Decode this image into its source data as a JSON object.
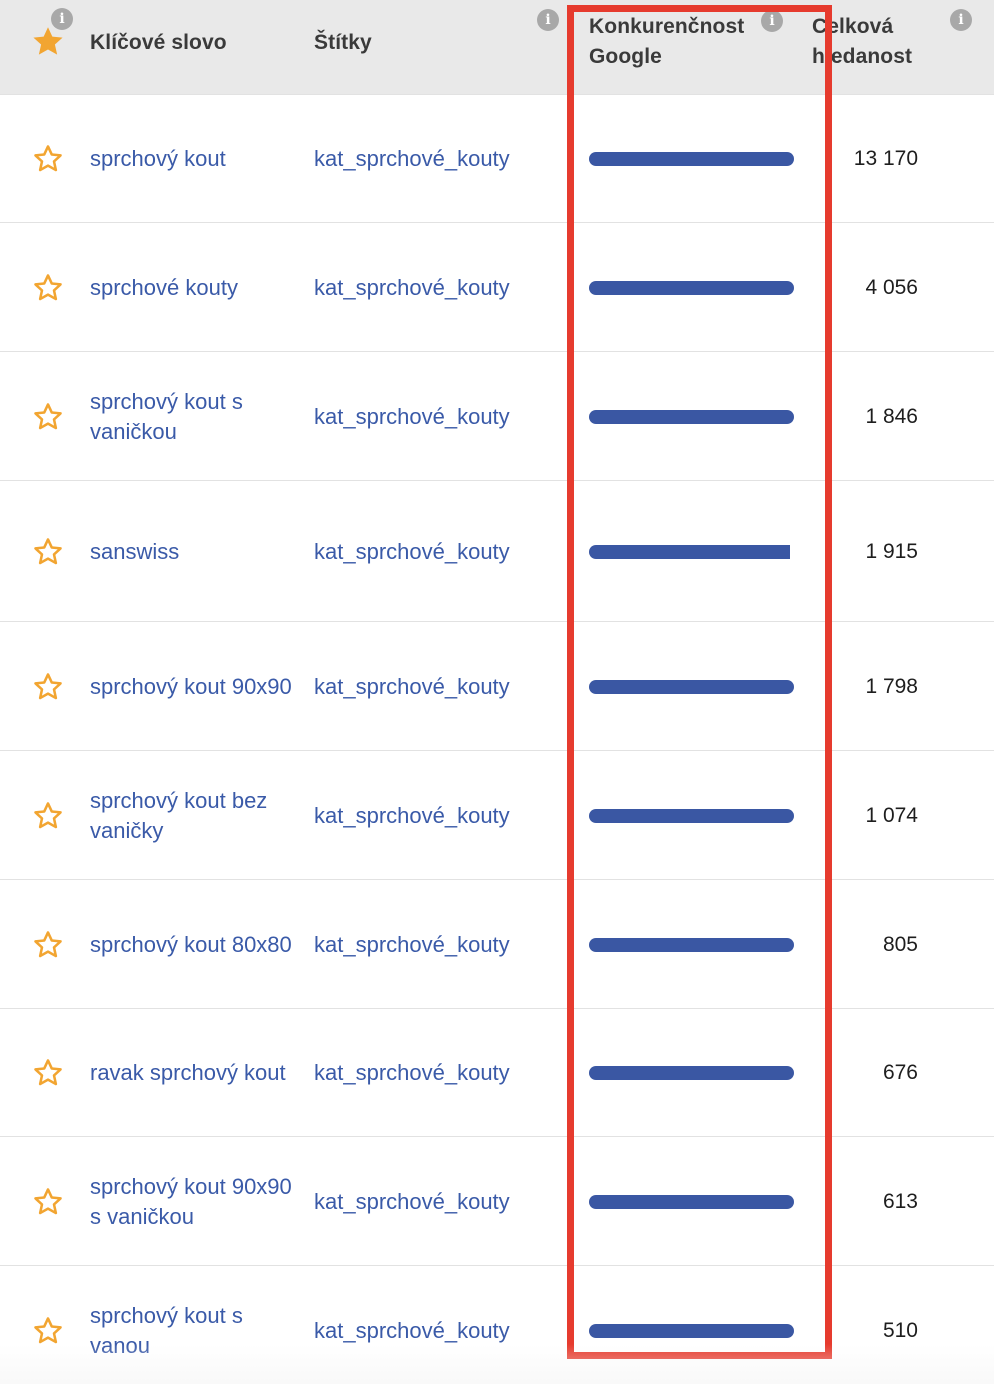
{
  "header": {
    "keyword": "Klíčové slovo",
    "tags": "Štítky",
    "competition_line1": "Konkurenčnost",
    "competition_line2": "Google",
    "volume_line1": "Celková",
    "volume_line2": "hledanost",
    "info_glyph": "i",
    "favorite_icon": "star-filled-icon"
  },
  "colors": {
    "star": "#f2a531",
    "link": "#3a5aa8",
    "bar": "#3a57a3",
    "highlight": "#e63b2e",
    "header_bg": "#e9e9e9"
  },
  "rows": [
    {
      "keyword": "sprchový kout",
      "tag": "kat_sprchové_kouty",
      "competition": 1.0,
      "volume": "13 170"
    },
    {
      "keyword": "sprchové kouty",
      "tag": "kat_sprchové_kouty",
      "competition": 1.0,
      "volume": "4 056"
    },
    {
      "keyword": "sprchový kout s vaničkou",
      "tag": "kat_sprchové_kouty",
      "competition": 1.0,
      "volume": "1 846"
    },
    {
      "keyword": "sanswiss",
      "tag": "kat_sprchové_kouty",
      "competition": 0.98,
      "volume": "1 915"
    },
    {
      "keyword": "sprchový kout 90x90",
      "tag": "kat_sprchové_kouty",
      "competition": 1.0,
      "volume": "1 798"
    },
    {
      "keyword": "sprchový kout bez vaničky",
      "tag": "kat_sprchové_kouty",
      "competition": 1.0,
      "volume": "1 074"
    },
    {
      "keyword": "sprchový kout 80x80",
      "tag": "kat_sprchové_kouty",
      "competition": 1.0,
      "volume": "805"
    },
    {
      "keyword": "ravak sprchový kout",
      "tag": "kat_sprchové_kouty",
      "competition": 1.0,
      "volume": "676"
    },
    {
      "keyword": "sprchový kout 90x90 s vaničkou",
      "tag": "kat_sprchové_kouty",
      "competition": 1.0,
      "volume": "613"
    },
    {
      "keyword": "sprchový kout s vanou",
      "tag": "kat_sprchové_kouty",
      "competition": 1.0,
      "volume": "510"
    }
  ]
}
